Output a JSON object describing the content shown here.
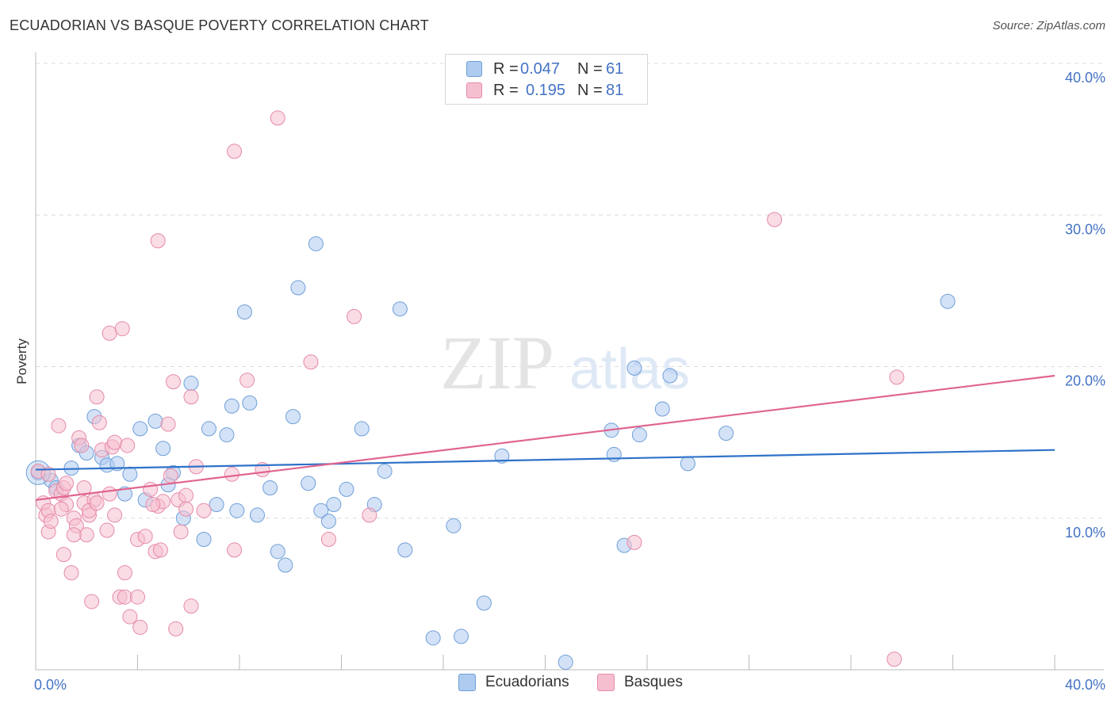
{
  "header": {
    "title": "ECUADORIAN VS BASQUE POVERTY CORRELATION CHART",
    "source": "Source: ZipAtlas.com"
  },
  "watermark": {
    "zip": "ZIP",
    "atlas": "atlas"
  },
  "legend": {
    "rows": [
      {
        "r_label": "R =",
        "r_value": "0.047",
        "n_label": "N =",
        "n_value": "61"
      },
      {
        "r_label": "R =",
        "r_value": "0.195",
        "n_label": "N =",
        "n_value": "81"
      }
    ]
  },
  "colors": {
    "ecuadorians_fill": "#aecbf0",
    "ecuadorians_stroke": "#6f9fd8",
    "ecuadorians_line": "#2f72c9",
    "basques_fill": "#f6bfd0",
    "basques_stroke": "#e58aa8",
    "basques_line": "#e0648f",
    "tick_label": "#4472c4",
    "grid": "#dcdcdc"
  },
  "chart_data": {
    "type": "scatter",
    "title": "ECUADORIAN VS BASQUE POVERTY CORRELATION CHART",
    "xlabel": "",
    "ylabel": "Poverty",
    "xlim": [
      0,
      40
    ],
    "ylim": [
      0,
      40
    ],
    "x_tick_labels": [
      "0.0%",
      "40.0%"
    ],
    "y_ticks": [
      10,
      20,
      30,
      40
    ],
    "y_tick_labels": [
      "10.0%",
      "20.0%",
      "30.0%",
      "40.0%"
    ],
    "grid": true,
    "legend_position": "top-center",
    "series": [
      {
        "name": "Ecuadorians",
        "r": 0.047,
        "n": 61,
        "trend": {
          "x": [
            0,
            40
          ],
          "y": [
            13.2,
            14.5
          ]
        },
        "points": [
          [
            0.1,
            13.0
          ],
          [
            0.6,
            12.5
          ],
          [
            0.8,
            12.0
          ],
          [
            1.4,
            13.3
          ],
          [
            1.7,
            14.8
          ],
          [
            2.0,
            14.3
          ],
          [
            2.3,
            16.7
          ],
          [
            2.6,
            14.0
          ],
          [
            2.8,
            13.5
          ],
          [
            3.2,
            13.6
          ],
          [
            3.5,
            11.6
          ],
          [
            3.7,
            12.9
          ],
          [
            4.1,
            15.9
          ],
          [
            4.3,
            11.2
          ],
          [
            4.7,
            16.4
          ],
          [
            5.0,
            14.6
          ],
          [
            5.2,
            12.2
          ],
          [
            5.4,
            13.0
          ],
          [
            5.8,
            10.0
          ],
          [
            6.1,
            18.9
          ],
          [
            6.6,
            8.6
          ],
          [
            6.8,
            15.9
          ],
          [
            7.1,
            10.9
          ],
          [
            7.5,
            15.5
          ],
          [
            7.7,
            17.4
          ],
          [
            7.9,
            10.5
          ],
          [
            8.2,
            23.6
          ],
          [
            8.4,
            17.6
          ],
          [
            8.7,
            10.2
          ],
          [
            9.2,
            12.0
          ],
          [
            9.5,
            7.8
          ],
          [
            9.8,
            6.9
          ],
          [
            10.1,
            16.7
          ],
          [
            10.3,
            25.2
          ],
          [
            10.7,
            12.3
          ],
          [
            11.0,
            28.1
          ],
          [
            11.2,
            10.5
          ],
          [
            11.5,
            9.8
          ],
          [
            11.7,
            10.9
          ],
          [
            12.2,
            11.9
          ],
          [
            12.8,
            15.9
          ],
          [
            13.3,
            10.9
          ],
          [
            13.7,
            13.1
          ],
          [
            14.3,
            23.8
          ],
          [
            14.5,
            7.9
          ],
          [
            15.6,
            2.1
          ],
          [
            16.4,
            9.5
          ],
          [
            16.7,
            2.2
          ],
          [
            17.6,
            4.4
          ],
          [
            18.3,
            14.1
          ],
          [
            20.8,
            0.5
          ],
          [
            22.6,
            15.8
          ],
          [
            22.7,
            14.2
          ],
          [
            23.1,
            8.2
          ],
          [
            23.5,
            19.9
          ],
          [
            23.7,
            15.5
          ],
          [
            24.6,
            17.2
          ],
          [
            24.9,
            19.4
          ],
          [
            25.6,
            13.6
          ],
          [
            27.1,
            15.6
          ],
          [
            35.8,
            24.3
          ]
        ]
      },
      {
        "name": "Basques",
        "r": 0.195,
        "n": 81,
        "trend": {
          "x": [
            0,
            40
          ],
          "y": [
            11.2,
            19.4
          ]
        },
        "points": [
          [
            0.1,
            13.1
          ],
          [
            0.3,
            11.0
          ],
          [
            0.4,
            10.2
          ],
          [
            0.5,
            10.5
          ],
          [
            0.5,
            9.1
          ],
          [
            0.6,
            9.8
          ],
          [
            0.8,
            11.8
          ],
          [
            0.9,
            16.1
          ],
          [
            1.0,
            11.6
          ],
          [
            1.1,
            12.0
          ],
          [
            1.2,
            12.3
          ],
          [
            1.2,
            10.9
          ],
          [
            1.1,
            7.6
          ],
          [
            1.4,
            6.4
          ],
          [
            1.5,
            10.0
          ],
          [
            1.6,
            9.5
          ],
          [
            1.7,
            15.3
          ],
          [
            1.8,
            14.8
          ],
          [
            1.9,
            12.0
          ],
          [
            1.9,
            11.0
          ],
          [
            2.0,
            8.9
          ],
          [
            2.1,
            10.2
          ],
          [
            2.2,
            4.5
          ],
          [
            2.3,
            11.2
          ],
          [
            2.4,
            18.0
          ],
          [
            2.5,
            16.3
          ],
          [
            2.6,
            14.5
          ],
          [
            2.8,
            9.2
          ],
          [
            2.9,
            22.2
          ],
          [
            3.0,
            14.7
          ],
          [
            3.1,
            15.0
          ],
          [
            3.1,
            10.2
          ],
          [
            3.3,
            4.8
          ],
          [
            3.4,
            22.5
          ],
          [
            3.5,
            6.4
          ],
          [
            3.5,
            4.8
          ],
          [
            3.7,
            3.5
          ],
          [
            4.0,
            4.8
          ],
          [
            4.0,
            8.6
          ],
          [
            4.1,
            2.8
          ],
          [
            4.3,
            8.8
          ],
          [
            4.5,
            11.9
          ],
          [
            4.7,
            7.8
          ],
          [
            4.8,
            10.8
          ],
          [
            4.8,
            28.3
          ],
          [
            4.9,
            7.9
          ],
          [
            5.0,
            11.1
          ],
          [
            5.2,
            16.2
          ],
          [
            5.3,
            12.8
          ],
          [
            5.4,
            19.0
          ],
          [
            5.5,
            2.7
          ],
          [
            5.6,
            11.2
          ],
          [
            5.7,
            9.1
          ],
          [
            5.9,
            11.5
          ],
          [
            5.9,
            10.6
          ],
          [
            6.1,
            4.2
          ],
          [
            6.1,
            18.0
          ],
          [
            6.3,
            13.4
          ],
          [
            6.6,
            10.5
          ],
          [
            7.7,
            12.9
          ],
          [
            7.8,
            7.9
          ],
          [
            7.8,
            34.2
          ],
          [
            8.3,
            19.1
          ],
          [
            8.9,
            13.2
          ],
          [
            9.5,
            36.4
          ],
          [
            10.8,
            20.3
          ],
          [
            11.5,
            8.6
          ],
          [
            12.5,
            23.3
          ],
          [
            13.1,
            10.2
          ],
          [
            23.5,
            8.4
          ],
          [
            29.0,
            29.7
          ],
          [
            33.7,
            0.7
          ],
          [
            33.8,
            19.3
          ],
          [
            0.5,
            12.9
          ],
          [
            1.0,
            10.6
          ],
          [
            1.5,
            8.9
          ],
          [
            2.1,
            10.5
          ],
          [
            2.4,
            11.0
          ],
          [
            2.9,
            11.6
          ],
          [
            3.6,
            14.8
          ],
          [
            4.6,
            10.9
          ]
        ]
      }
    ]
  },
  "bottom_legend": [
    "Ecuadorians",
    "Basques"
  ]
}
